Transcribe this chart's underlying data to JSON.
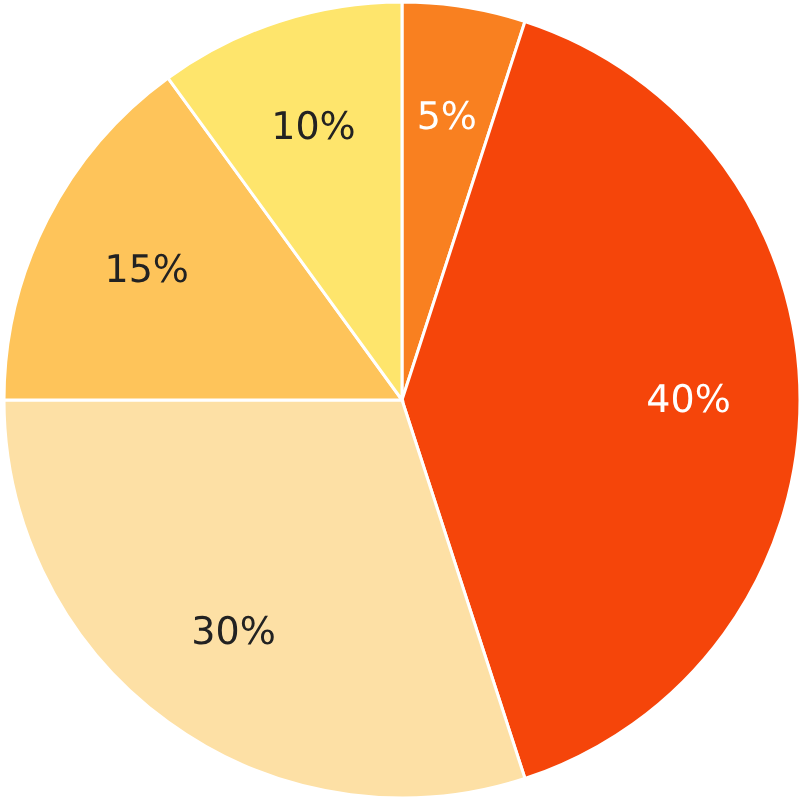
{
  "chart_data": {
    "type": "pie",
    "categories": [
      null,
      null,
      null,
      null,
      null
    ],
    "values": [
      5,
      40,
      30,
      15,
      10
    ],
    "value_labels": [
      "5%",
      "40%",
      "30%",
      "15%",
      "10%"
    ],
    "colors": [
      "#f98020",
      "#f5450a",
      "#fde0a5",
      "#fec45a",
      "#fee56c"
    ]
  }
}
